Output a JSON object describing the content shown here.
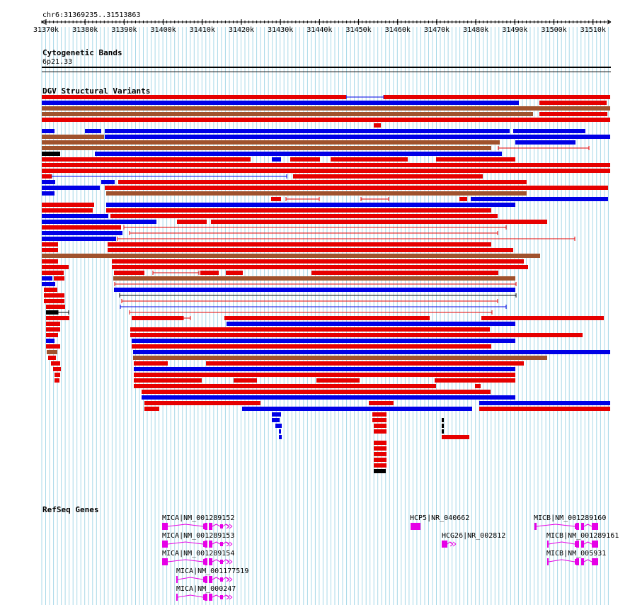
{
  "ruler": {
    "position_label": "chr6:31369235..31513863",
    "ticks": [
      "31370k",
      "31380k",
      "31390k",
      "31400k",
      "31410k",
      "31420k",
      "31430k",
      "31440k",
      "31450k",
      "31460k",
      "31470k",
      "31480k",
      "31490k",
      "31500k",
      "31510k"
    ]
  },
  "tracks": {
    "cytoband": {
      "title": "Cytogenetic Bands",
      "band": "6p21.33"
    },
    "dgv": {
      "title": "DGV Structural Variants"
    },
    "refseq": {
      "title": "RefSeq Genes"
    }
  },
  "colors": {
    "loss": "#e60000",
    "gain": "#0000e6",
    "complex": "#a0522d",
    "other": "#000000",
    "gene": "#e600e6",
    "grid": "#a8d8e8"
  },
  "genes": [
    {
      "label": "MICA|NM_001289152"
    },
    {
      "label": "MICA|NM_001289153"
    },
    {
      "label": "MICA|NM_001289154"
    },
    {
      "label": "MICA|NM_001177519"
    },
    {
      "label": "MICA|NM_000247"
    },
    {
      "label": "HCP5|NR_040662"
    },
    {
      "label": "HCG26|NR_002812"
    },
    {
      "label": "MICB|NM_001289160"
    },
    {
      "label": "MICB|NM_001289161"
    },
    {
      "label": "MICB|NM_005931"
    }
  ]
}
